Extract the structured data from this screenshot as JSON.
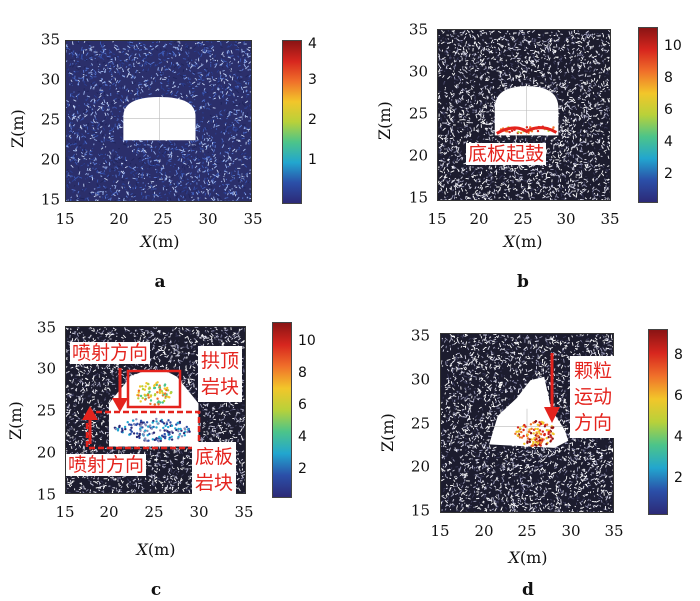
{
  "panels": [
    {
      "letter": "a",
      "xlabel_sym": "X",
      "xlabel_unit": "(m)",
      "ylabel": "Z(m)",
      "x_ticks": [
        "15",
        "20",
        "25",
        "30",
        "35"
      ],
      "y_ticks": [
        "35",
        "30",
        "25",
        "20",
        "15"
      ],
      "colorbar_ticks": [
        "4",
        "3",
        "2",
        "1"
      ],
      "colorbar_max": 4,
      "annotations": []
    },
    {
      "letter": "b",
      "xlabel_sym": "X",
      "xlabel_unit": "(m)",
      "ylabel": "Z(m)",
      "x_ticks": [
        "15",
        "20",
        "25",
        "30",
        "35"
      ],
      "y_ticks": [
        "35",
        "30",
        "25",
        "20",
        "15"
      ],
      "colorbar_ticks": [
        "10",
        "8",
        "6",
        "4",
        "2"
      ],
      "colorbar_max": 11,
      "annotations": [
        "底板起鼓"
      ]
    },
    {
      "letter": "c",
      "xlabel_sym": "X",
      "xlabel_unit": "(m)",
      "ylabel": "Z(m)",
      "x_ticks": [
        "15",
        "20",
        "25",
        "30",
        "35"
      ],
      "y_ticks": [
        "35",
        "30",
        "25",
        "20",
        "15"
      ],
      "colorbar_ticks": [
        "10",
        "8",
        "6",
        "4",
        "2"
      ],
      "colorbar_max": 11,
      "annotations": [
        "喷射方向",
        "拱顶岩块",
        "喷射方向",
        "底板岩块"
      ]
    },
    {
      "letter": "d",
      "xlabel_sym": "X",
      "xlabel_unit": "(m)",
      "ylabel": "Z(m)",
      "x_ticks": [
        "15",
        "20",
        "25",
        "30",
        "35"
      ],
      "y_ticks": [
        "35",
        "30",
        "25",
        "20",
        "15"
      ],
      "colorbar_ticks": [
        "8",
        "6",
        "4",
        "2"
      ],
      "colorbar_max": 9,
      "annotations": [
        "颗粒运动方向"
      ]
    }
  ],
  "colors": {
    "colormap": [
      "#2c2a77",
      "#2b4fa8",
      "#22a6cf",
      "#4cc48a",
      "#b8d13a",
      "#f2c62a",
      "#f0702a",
      "#d7261e",
      "#8a1414"
    ],
    "annotation": "#e4231d",
    "background_particles": "#2a2a4a"
  },
  "chart_data": [
    {
      "type": "scatter",
      "title": "",
      "xlabel": "X(m)",
      "ylabel": "Z(m)",
      "xlim": [
        15,
        35
      ],
      "ylim": [
        15,
        35
      ],
      "colorbar_range": [
        0,
        4
      ],
      "grid": false
    },
    {
      "type": "scatter",
      "title": "",
      "xlabel": "X(m)",
      "ylabel": "Z(m)",
      "xlim": [
        15,
        35
      ],
      "ylim": [
        15,
        35
      ],
      "colorbar_range": [
        0,
        11
      ],
      "grid": false
    },
    {
      "type": "scatter",
      "title": "",
      "xlabel": "X(m)",
      "ylabel": "Z(m)",
      "xlim": [
        15,
        35
      ],
      "ylim": [
        15,
        35
      ],
      "colorbar_range": [
        0,
        11
      ],
      "grid": false
    },
    {
      "type": "scatter",
      "title": "",
      "xlabel": "X(m)",
      "ylabel": "Z(m)",
      "xlim": [
        15,
        35
      ],
      "ylim": [
        15,
        35
      ],
      "colorbar_range": [
        0,
        9
      ],
      "grid": false
    }
  ]
}
